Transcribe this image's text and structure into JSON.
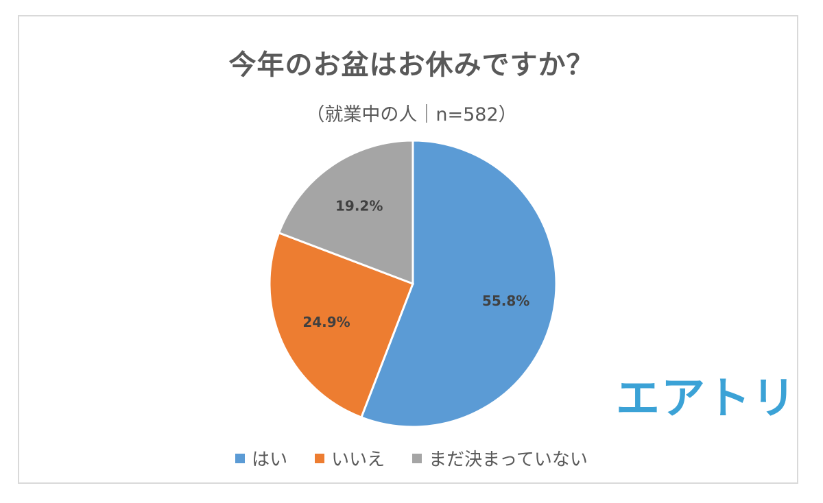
{
  "chart_data": {
    "type": "pie",
    "title": "今年のお盆はお休みですか？",
    "subtitle": "（就業中の人｜n=582）",
    "categories": [
      "はい",
      "いいえ",
      "まだ決まっていない"
    ],
    "values": [
      55.8,
      24.9,
      19.2
    ],
    "labels": [
      "55.8%",
      "24.9%",
      "19.2%"
    ],
    "colors": [
      "#5b9bd5",
      "#ed7d31",
      "#a5a5a5"
    ],
    "legend": "bottom"
  },
  "logo": {
    "text": "エアトリ",
    "color": "#3ba2d6"
  }
}
